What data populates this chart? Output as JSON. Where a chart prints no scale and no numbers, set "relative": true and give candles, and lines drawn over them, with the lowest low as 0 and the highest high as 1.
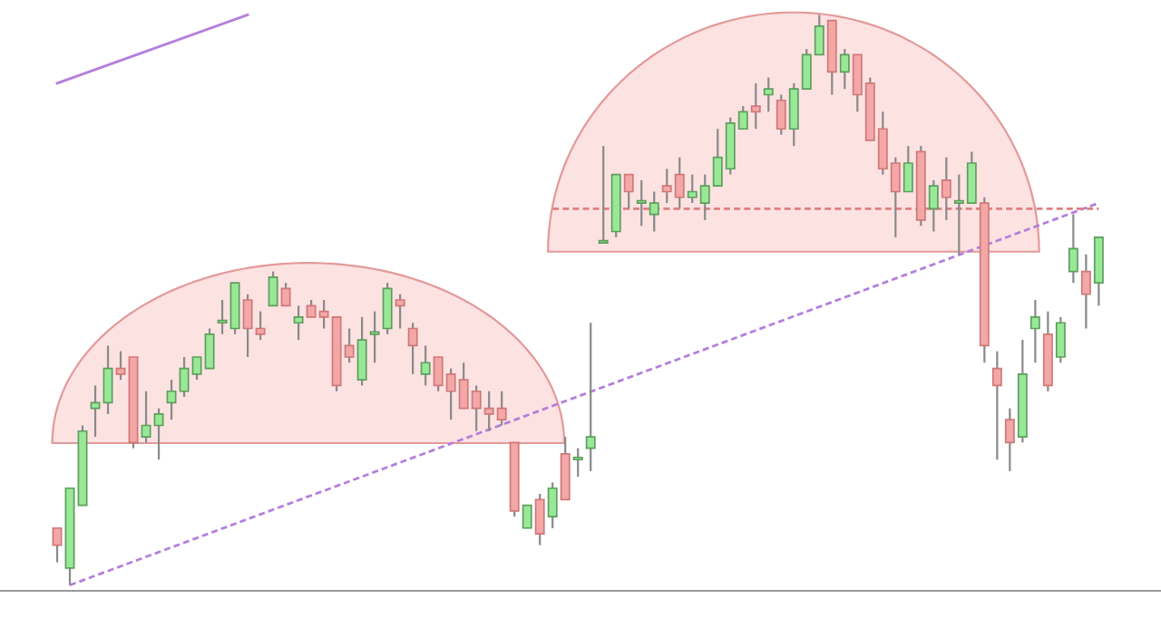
{
  "chart_data": {
    "type": "candlestick",
    "relative": true,
    "categories": [
      null,
      null,
      null,
      null,
      null,
      null,
      null,
      null,
      null,
      null,
      null,
      null,
      null,
      null,
      null,
      null,
      null,
      null,
      null,
      null,
      null,
      null,
      null,
      null,
      null,
      null,
      null,
      null,
      null,
      null,
      null,
      null,
      null,
      null,
      null,
      null,
      null,
      null,
      null,
      null,
      null,
      null,
      null,
      null,
      null,
      null,
      null,
      null,
      null,
      null,
      null,
      null,
      null,
      null,
      null,
      null,
      null,
      null,
      null,
      null,
      null,
      null,
      null,
      null,
      null,
      null,
      null,
      null,
      null,
      null,
      null,
      null,
      null,
      null,
      null,
      null,
      null,
      null,
      null,
      null,
      null,
      null,
      null
    ],
    "ohlc": [
      [
        0.1,
        0.1,
        0.04,
        0.07
      ],
      [
        0.03,
        0.17,
        0.0,
        0.17
      ],
      [
        0.14,
        0.28,
        0.14,
        0.27
      ],
      [
        0.31,
        0.35,
        0.26,
        0.32
      ],
      [
        0.32,
        0.42,
        0.3,
        0.38
      ],
      [
        0.38,
        0.41,
        0.36,
        0.37
      ],
      [
        0.4,
        0.4,
        0.24,
        0.25
      ],
      [
        0.26,
        0.34,
        0.25,
        0.28
      ],
      [
        0.28,
        0.31,
        0.22,
        0.3
      ],
      [
        0.32,
        0.36,
        0.29,
        0.34
      ],
      [
        0.34,
        0.4,
        0.33,
        0.38
      ],
      [
        0.37,
        0.4,
        0.36,
        0.4
      ],
      [
        0.38,
        0.45,
        0.38,
        0.44
      ],
      [
        0.46,
        0.5,
        0.44,
        0.46
      ],
      [
        0.45,
        0.53,
        0.44,
        0.53
      ],
      [
        0.5,
        0.51,
        0.4,
        0.45
      ],
      [
        0.45,
        0.48,
        0.43,
        0.44
      ],
      [
        0.49,
        0.55,
        0.49,
        0.54
      ],
      [
        0.52,
        0.53,
        0.49,
        0.49
      ],
      [
        0.46,
        0.49,
        0.43,
        0.47
      ],
      [
        0.49,
        0.5,
        0.47,
        0.47
      ],
      [
        0.48,
        0.5,
        0.45,
        0.47
      ],
      [
        0.47,
        0.47,
        0.34,
        0.35
      ],
      [
        0.42,
        0.45,
        0.39,
        0.4
      ],
      [
        0.36,
        0.47,
        0.35,
        0.43
      ],
      [
        0.44,
        0.48,
        0.39,
        0.44
      ],
      [
        0.45,
        0.53,
        0.44,
        0.52
      ],
      [
        0.5,
        0.51,
        0.45,
        0.49
      ],
      [
        0.45,
        0.46,
        0.37,
        0.42
      ],
      [
        0.37,
        0.42,
        0.35,
        0.39
      ],
      [
        0.4,
        0.4,
        0.34,
        0.35
      ],
      [
        0.37,
        0.38,
        0.29,
        0.34
      ],
      [
        0.36,
        0.39,
        0.31,
        0.31
      ],
      [
        0.34,
        0.35,
        0.27,
        0.31
      ],
      [
        0.31,
        0.34,
        0.27,
        0.3
      ],
      [
        0.31,
        0.34,
        0.28,
        0.29
      ],
      [
        0.25,
        0.25,
        0.12,
        0.13
      ],
      [
        0.1,
        0.14,
        0.1,
        0.14
      ],
      [
        0.15,
        0.16,
        0.07,
        0.09
      ],
      [
        0.12,
        0.18,
        0.1,
        0.17
      ],
      [
        0.23,
        0.26,
        0.15,
        0.15
      ],
      [
        0.22,
        0.24,
        0.19,
        0.22
      ],
      [
        0.24,
        0.46,
        0.2,
        0.26
      ],
      [
        0.6,
        0.77,
        0.6,
        0.6
      ],
      [
        0.62,
        0.72,
        0.61,
        0.72
      ],
      [
        0.72,
        0.72,
        0.66,
        0.69
      ],
      [
        0.67,
        0.71,
        0.63,
        0.67
      ],
      [
        0.65,
        0.69,
        0.62,
        0.67
      ],
      [
        0.7,
        0.73,
        0.67,
        0.69
      ],
      [
        0.72,
        0.75,
        0.66,
        0.68
      ],
      [
        0.68,
        0.72,
        0.67,
        0.69
      ],
      [
        0.67,
        0.72,
        0.64,
        0.7
      ],
      [
        0.7,
        0.8,
        0.7,
        0.75
      ],
      [
        0.73,
        0.82,
        0.72,
        0.81
      ],
      [
        0.8,
        0.84,
        0.8,
        0.83
      ],
      [
        0.84,
        0.88,
        0.8,
        0.83
      ],
      [
        0.86,
        0.89,
        0.83,
        0.87
      ],
      [
        0.85,
        0.86,
        0.79,
        0.8
      ],
      [
        0.8,
        0.88,
        0.77,
        0.87
      ],
      [
        0.87,
        0.94,
        0.87,
        0.93
      ],
      [
        0.93,
        1.0,
        0.93,
        0.98
      ],
      [
        0.99,
        0.99,
        0.86,
        0.9
      ],
      [
        0.9,
        0.94,
        0.87,
        0.93
      ],
      [
        0.93,
        0.93,
        0.83,
        0.86
      ],
      [
        0.88,
        0.89,
        0.78,
        0.78
      ],
      [
        0.8,
        0.83,
        0.72,
        0.73
      ],
      [
        0.74,
        0.75,
        0.61,
        0.69
      ],
      [
        0.69,
        0.77,
        0.69,
        0.74
      ],
      [
        0.76,
        0.77,
        0.63,
        0.64
      ],
      [
        0.66,
        0.71,
        0.62,
        0.7
      ],
      [
        0.71,
        0.75,
        0.64,
        0.68
      ],
      [
        0.67,
        0.72,
        0.58,
        0.67
      ],
      [
        0.67,
        0.76,
        0.67,
        0.74
      ],
      [
        0.67,
        0.68,
        0.39,
        0.42
      ],
      [
        0.38,
        0.41,
        0.22,
        0.35
      ],
      [
        0.29,
        0.31,
        0.2,
        0.25
      ],
      [
        0.26,
        0.43,
        0.25,
        0.37
      ],
      [
        0.45,
        0.5,
        0.39,
        0.47
      ],
      [
        0.44,
        0.48,
        0.34,
        0.35
      ],
      [
        0.4,
        0.47,
        0.39,
        0.46
      ],
      [
        0.55,
        0.65,
        0.53,
        0.59
      ],
      [
        0.55,
        0.58,
        0.45,
        0.51
      ],
      [
        0.53,
        0.61,
        0.49,
        0.61
      ]
    ],
    "series": [
      {
        "type": "line",
        "color": "#b57edc",
        "line_style": "dashed",
        "values": [
          null,
          0.0,
          null,
          null,
          null,
          null,
          null,
          null,
          null,
          null,
          null,
          null,
          null,
          null,
          null,
          null,
          null,
          null,
          null,
          null,
          null,
          null,
          null,
          null,
          null,
          null,
          null,
          null,
          null,
          null,
          null,
          null,
          null,
          null,
          null,
          null,
          null,
          null,
          null,
          null,
          null,
          null,
          null,
          null,
          null,
          null,
          null,
          null,
          null,
          null,
          null,
          null,
          null,
          null,
          null,
          null,
          null,
          null,
          null,
          null,
          null,
          null,
          null,
          null,
          null,
          null,
          null,
          null,
          null,
          null,
          null,
          null,
          null,
          null,
          null,
          null,
          null,
          null,
          null,
          null,
          null,
          null,
          0.67
        ]
      },
      {
        "type": "line",
        "color": "#b57edc",
        "line_style": "solid",
        "values": [
          0.88,
          null,
          null,
          null,
          null,
          null,
          null,
          null,
          null,
          null,
          null,
          null,
          null,
          null,
          null,
          1.0,
          null,
          null,
          null,
          null,
          null,
          null,
          null,
          null,
          null,
          null,
          null,
          null,
          null,
          null,
          null,
          null,
          null,
          null,
          null,
          null,
          null,
          null,
          null,
          null,
          null,
          null,
          null,
          null,
          null,
          null,
          null,
          null,
          null,
          null,
          null,
          null,
          null,
          null,
          null,
          null,
          null,
          null,
          null,
          null,
          null,
          null,
          null,
          null,
          null,
          null,
          null,
          null,
          null,
          null,
          null,
          null,
          null,
          null,
          null,
          null,
          null,
          null,
          null,
          null,
          null,
          null,
          null
        ]
      },
      {
        "type": "line",
        "color": "#e08080",
        "line_style": "dashed",
        "values": [
          null,
          null,
          null,
          null,
          null,
          null,
          null,
          null,
          null,
          null,
          null,
          null,
          null,
          null,
          null,
          null,
          null,
          null,
          null,
          null,
          null,
          null,
          null,
          null,
          null,
          null,
          null,
          null,
          null,
          null,
          null,
          null,
          null,
          null,
          null,
          null,
          null,
          null,
          null,
          0.66,
          null,
          null,
          null,
          null,
          null,
          null,
          null,
          null,
          null,
          null,
          null,
          null,
          null,
          null,
          null,
          null,
          null,
          null,
          null,
          null,
          null,
          null,
          null,
          null,
          null,
          null,
          null,
          null,
          null,
          null,
          null,
          null,
          null,
          null,
          null,
          null,
          null,
          null,
          null,
          null,
          null,
          null,
          0.66
        ]
      }
    ]
  }
}
